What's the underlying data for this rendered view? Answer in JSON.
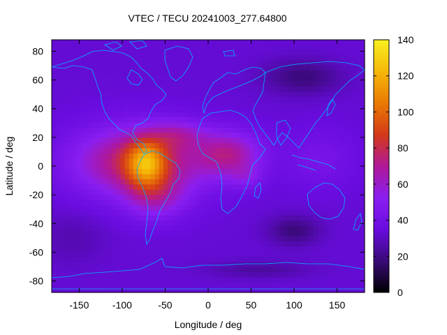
{
  "chart_data": {
    "type": "heatmap",
    "title": "VTEC / TECU 20241003_277.64800",
    "xlabel": "Longitude / deg",
    "ylabel": "Latitude / deg",
    "xlim": [
      -182,
      182
    ],
    "ylim": [
      -88,
      88
    ],
    "x_ticks": [
      -150,
      -100,
      -50,
      0,
      50,
      100,
      150
    ],
    "x_tick_labels": [
      "-150",
      "-100",
      "-50",
      "0",
      "50",
      "100",
      "150"
    ],
    "y_ticks": [
      80,
      60,
      40,
      20,
      0,
      -20,
      -40,
      -60,
      -80
    ],
    "y_tick_labels": [
      "80",
      "60",
      "40",
      "20",
      "0",
      "-20",
      "-40",
      "-60",
      "-80"
    ],
    "colorbar": {
      "range": [
        0,
        140
      ],
      "ticks": [
        0,
        20,
        40,
        60,
        80,
        100,
        120,
        140
      ],
      "tick_labels": [
        "0",
        "20",
        "40",
        "60",
        "80",
        "100",
        "120",
        "140"
      ],
      "palette": [
        "#000000",
        "#3a0a78",
        "#6a0ce0",
        "#8a1ef0",
        "#b01898",
        "#d43a18",
        "#ea7a04",
        "#f6b808",
        "#f8f020"
      ]
    },
    "background_level": 33,
    "features": [
      {
        "name": "main equatorial peak",
        "lon": -72,
        "lat": 2,
        "value": 130
      },
      {
        "name": "south american anomaly crest",
        "lon": -60,
        "lat": -22,
        "value": 92
      },
      {
        "name": "northern crest",
        "lon": -35,
        "lat": 22,
        "value": 98
      },
      {
        "name": "eastern pacific plateau",
        "lon": -120,
        "lat": 5,
        "value": 80
      },
      {
        "name": "african extension",
        "lon": 25,
        "lat": 8,
        "value": 78
      },
      {
        "name": "southern africa lobe",
        "lon": 45,
        "lat": -8,
        "value": 72
      },
      {
        "name": "northeast asia trough",
        "lon": 110,
        "lat": 62,
        "value": 18
      },
      {
        "name": "southern indian ocean trough",
        "lon": 100,
        "lat": -45,
        "value": 18
      },
      {
        "name": "antarctic band",
        "lon": 60,
        "lat": -72,
        "value": 24
      }
    ],
    "overlay": "coastlines"
  },
  "colors": {
    "coastline": "#00b4ff",
    "frame": "#000000"
  }
}
